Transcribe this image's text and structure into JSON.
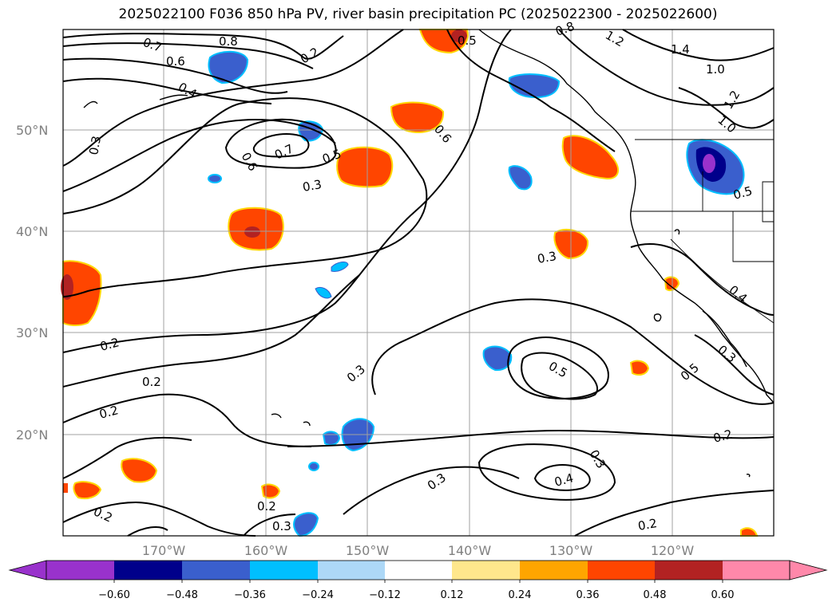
{
  "title": "2025022100 F036 850 hPa PV, river basin precipitation PC (2025022300 - 2025022600)",
  "latitudes": [
    "50°N",
    "40°N",
    "30°N",
    "20°N"
  ],
  "longitudes": [
    "170°W",
    "160°W",
    "150°W",
    "140°W",
    "130°W",
    "120°W"
  ],
  "pv_contour_labels": [
    "0.8",
    "0.7",
    "0.6",
    "0.4",
    "0.5",
    "0.8",
    "1.2",
    "1.4",
    "1.0",
    "1.2",
    "1.0",
    "0.3",
    "0.6",
    "0.7",
    "0.5",
    "0.6",
    "0.3",
    "0.5",
    "0.3",
    "0.4",
    "0.3",
    "0.2",
    "0.2",
    "0.2",
    "0.3",
    "0.5",
    "0.5",
    "0.3",
    "0.2",
    "0.3",
    "0.4",
    "0.2",
    "0.2",
    "0.2",
    "0.3",
    "0.2"
  ],
  "colorbar": {
    "ticks": [
      "−0.60",
      "−0.48",
      "−0.36",
      "−0.24",
      "−0.12",
      "0.12",
      "0.24",
      "0.36",
      "0.48",
      "0.60"
    ],
    "colors": [
      "#9932cc",
      "#00008b",
      "#3a5fcd",
      "#00bfff",
      "#add8f7",
      "#ffffff",
      "#ffe78c",
      "#ffa500",
      "#ff4500",
      "#b22222",
      "#ff88aa"
    ]
  }
}
